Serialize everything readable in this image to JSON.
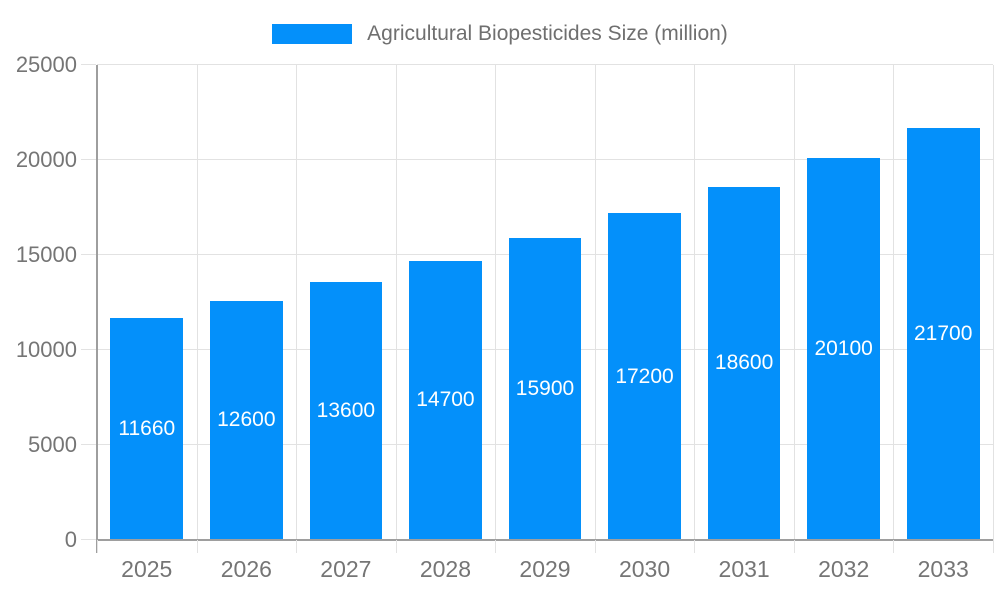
{
  "chart_data": {
    "type": "bar",
    "title": "Agricultural Biopesticides Size (million)",
    "categories": [
      "2025",
      "2026",
      "2027",
      "2028",
      "2029",
      "2030",
      "2031",
      "2032",
      "2033"
    ],
    "values": [
      11660,
      12600,
      13600,
      14700,
      15900,
      17200,
      18600,
      20100,
      21700
    ],
    "bar_labels": [
      "11660",
      "12600",
      "13600",
      "14700",
      "15900",
      "17200",
      "18600",
      "20100",
      "21700"
    ],
    "xlabel": "",
    "ylabel": "",
    "ylim": [
      0,
      25000
    ],
    "yticks": [
      0,
      5000,
      10000,
      15000,
      20000,
      25000
    ],
    "grid": true,
    "legend_position": "top"
  },
  "colors": {
    "bar": "#0490fa",
    "bar_label": "#ffffff",
    "grid": "#e2e2e2",
    "axis": "#9e9e9e",
    "tick_text": "#757575",
    "title_text": "#6f6f6f",
    "background": "#ffffff"
  }
}
